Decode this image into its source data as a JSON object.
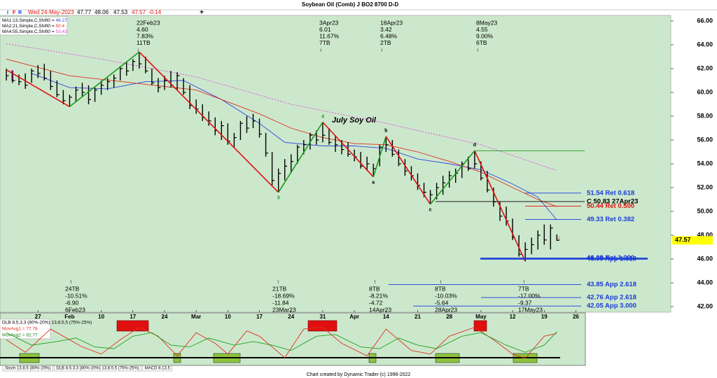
{
  "header": {
    "title": "Soybean Oil (Comb) J BO2 8700 D-D",
    "footer": "Chart created by Dynamic Trader  (c) 1996-2022",
    "toolbar_icons": [
      "I",
      "F",
      "R"
    ],
    "plus": "+"
  },
  "quote": {
    "date": "Wed 24-May-2023",
    "open": 47.77,
    "high": 48.06,
    "low": 47.53,
    "close": 47.57,
    "change": -0.14
  },
  "chart_data": {
    "type": "ohlc",
    "title": "July Soy Oil",
    "color": "#000000",
    "xlim": [
      -1,
      105
    ],
    "xticks": [
      {
        "value": 5,
        "label": "27"
      },
      {
        "value": 10,
        "label": "Feb"
      },
      {
        "value": 15,
        "label": "10"
      },
      {
        "value": 20,
        "label": "17"
      },
      {
        "value": 25,
        "label": "24"
      },
      {
        "value": 30,
        "label": "Mar"
      },
      {
        "value": 35,
        "label": "10"
      },
      {
        "value": 40,
        "label": "17"
      },
      {
        "value": 45,
        "label": "24"
      },
      {
        "value": 50,
        "label": "31"
      },
      {
        "value": 55,
        "label": "Apr"
      },
      {
        "value": 60,
        "label": "14"
      },
      {
        "value": 65,
        "label": "21"
      },
      {
        "value": 70,
        "label": "28"
      },
      {
        "value": 75,
        "label": "May"
      },
      {
        "value": 80,
        "label": "12"
      },
      {
        "value": 85,
        "label": "19"
      },
      {
        "value": 90,
        "label": "26"
      }
    ],
    "ylim": [
      41.53,
      66.47
    ],
    "yticks": [
      {
        "value": 42,
        "label": "42.00"
      },
      {
        "value": 44,
        "label": "44.00"
      },
      {
        "value": 46,
        "label": "46.00"
      },
      {
        "value": 48,
        "label": "48.00"
      },
      {
        "value": 50,
        "label": "50.00"
      },
      {
        "value": 52,
        "label": "52.00"
      },
      {
        "value": 54,
        "label": "54.00"
      },
      {
        "value": 56,
        "label": "56.00"
      },
      {
        "value": 58,
        "label": "58.00"
      },
      {
        "value": 60,
        "label": "60.00"
      },
      {
        "value": 62,
        "label": "62.00"
      },
      {
        "value": 64,
        "label": "64.00"
      },
      {
        "value": 66,
        "label": "66.00"
      }
    ],
    "high": [
      62.0,
      61.8,
      61.5,
      61.6,
      62.0,
      62.3,
      62.4,
      61.8,
      61.0,
      60.2,
      59.8,
      60.5,
      60.8,
      60.6,
      60.4,
      61.0,
      61.2,
      61.5,
      62.2,
      62.6,
      62.8,
      63.4,
      63.0,
      62.0,
      61.2,
      61.4,
      61.8,
      61.7,
      61.2,
      60.6,
      59.4,
      59.0,
      58.4,
      57.9,
      57.6,
      57.4,
      56.6,
      57.6,
      58.0,
      58.2,
      57.8,
      56.6,
      55.0,
      53.6,
      54.4,
      54.8,
      55.6,
      56.0,
      56.6,
      56.8,
      57.5,
      57.0,
      56.4,
      56.0,
      55.8,
      55.2,
      55.0,
      54.6,
      54.0,
      55.6,
      56.3,
      56.0,
      55.2,
      54.4,
      53.8,
      53.2,
      52.4,
      51.8,
      52.4,
      53.0,
      53.4,
      53.6,
      54.2,
      54.6,
      55.1,
      54.2,
      53.4,
      52.0,
      50.8,
      50.4,
      49.4,
      48.0,
      47.4,
      47.8,
      48.4,
      48.9,
      48.9,
      48.06
    ],
    "low": [
      61.0,
      60.8,
      60.6,
      60.3,
      60.8,
      61.2,
      61.0,
      60.2,
      59.6,
      59.0,
      58.8,
      59.2,
      59.6,
      59.0,
      59.2,
      59.8,
      60.2,
      60.4,
      61.0,
      61.4,
      61.8,
      62.0,
      61.6,
      60.6,
      60.0,
      60.2,
      60.4,
      60.2,
      59.8,
      58.6,
      58.2,
      57.6,
      57.2,
      56.4,
      56.0,
      55.6,
      55.4,
      56.0,
      56.6,
      57.0,
      56.2,
      54.6,
      52.2,
      51.6,
      52.6,
      53.2,
      54.0,
      54.8,
      55.2,
      55.6,
      55.8,
      55.6,
      55.0,
      54.8,
      54.6,
      54.2,
      53.6,
      53.4,
      52.9,
      53.8,
      55.0,
      54.6,
      53.8,
      53.0,
      52.6,
      51.8,
      51.2,
      50.6,
      51.0,
      51.4,
      52.0,
      52.4,
      52.8,
      53.4,
      53.6,
      52.6,
      51.6,
      50.4,
      49.2,
      48.8,
      47.6,
      46.2,
      45.8,
      46.4,
      46.8,
      47.2,
      46.8,
      47.53
    ],
    "close": [
      61.4,
      61.0,
      60.9,
      60.6,
      61.8,
      61.6,
      61.2,
      60.5,
      59.8,
      59.3,
      59.6,
      60.2,
      60.0,
      59.4,
      60.2,
      60.6,
      60.9,
      61.2,
      62.0,
      61.8,
      62.6,
      62.4,
      61.8,
      60.8,
      60.4,
      61.0,
      60.6,
      61.4,
      60.0,
      58.9,
      58.6,
      57.9,
      57.6,
      56.8,
      57.2,
      55.9,
      56.2,
      57.4,
      57.0,
      57.6,
      56.5,
      54.9,
      52.6,
      53.2,
      53.8,
      54.2,
      55.4,
      55.6,
      56.4,
      56.0,
      56.4,
      55.8,
      55.6,
      55.2,
      54.8,
      54.6,
      53.8,
      54.0,
      53.6,
      55.4,
      55.6,
      54.8,
      54.0,
      53.4,
      53.0,
      52.2,
      51.6,
      51.4,
      52.0,
      52.4,
      53.0,
      53.2,
      54.0,
      53.6,
      54.0,
      52.8,
      51.8,
      50.8,
      49.6,
      49.2,
      47.8,
      46.4,
      46.8,
      47.2,
      48.0,
      47.6,
      48.6,
      47.57
    ],
    "moving_averages": [
      {
        "name": "MA1:13,Simple,C,Shift0",
        "value": 49.27,
        "color": "#3048e0",
        "dashed": false,
        "x": [
          4,
          10,
          16,
          22,
          28,
          34,
          40,
          44,
          50,
          55,
          60,
          65,
          70,
          75,
          80,
          84,
          87
        ],
        "values": [
          61.6,
          60.4,
          60.3,
          60.9,
          61.0,
          59.4,
          57.4,
          55.8,
          55.5,
          55.5,
          55.3,
          54.4,
          54.0,
          53.5,
          52.3,
          51.2,
          49.27
        ]
      },
      {
        "name": "MA2:21,Simple,C,Shift0",
        "value": 50.4,
        "color": "#e03020",
        "dashed": false,
        "x": [
          0,
          10,
          20,
          30,
          40,
          45,
          50,
          55,
          60,
          65,
          70,
          75,
          80,
          84,
          87
        ],
        "values": [
          62.8,
          61.4,
          60.8,
          60.2,
          58.2,
          57.0,
          56.2,
          55.7,
          55.6,
          55.0,
          54.2,
          53.3,
          52.0,
          51.0,
          50.4
        ]
      },
      {
        "name": "MA4:55,Simple,C,Shift0",
        "value": 53.43,
        "color": "#e040e0",
        "dashed": true,
        "x": [
          0,
          15,
          30,
          45,
          60,
          75,
          87
        ],
        "values": [
          64.1,
          62.8,
          61.3,
          59.0,
          57.4,
          55.6,
          53.43
        ]
      }
    ],
    "zigzag": {
      "up_color": "#1a9a1a",
      "down_color": "#e01010",
      "x": [
        0,
        10,
        21,
        43,
        50,
        58,
        60,
        67,
        74,
        82
      ],
      "values": [
        61.9,
        58.8,
        63.4,
        51.6,
        57.5,
        52.9,
        56.3,
        50.6,
        55.1,
        45.8
      ],
      "labels": [
        null,
        null,
        null,
        "3",
        "4",
        "a",
        "b",
        "c",
        "d",
        null
      ],
      "label_colors": [
        null,
        null,
        null,
        "#1a9a1a",
        "#1a9a1a",
        "#000000",
        "#000000",
        "#000000",
        "#000000",
        null
      ]
    },
    "levels": [
      {
        "value": 51.54,
        "label": "51.54 Ret 0.618",
        "color": "#1a3ad8"
      },
      {
        "value": 50.83,
        "label": "C 50.83 27Apr23",
        "color": "#000000"
      },
      {
        "value": 50.44,
        "label": "50.44 Ret 0.500",
        "color": "#e01010"
      },
      {
        "value": 49.33,
        "label": "49.33 Ret 0.382",
        "color": "#1a3ad8"
      },
      {
        "value": 46.09,
        "label": "46.09 Ret 1.000",
        "color": "#1a3ad8"
      },
      {
        "value": 46.0,
        "label": "46.00 App 1.618",
        "color": "#1a3ad8"
      },
      {
        "value": 43.85,
        "label": "43.85 App 2.618",
        "color": "#1a3ad8"
      },
      {
        "value": 42.76,
        "label": "42.76 App 2.618",
        "color": "#1a3ad8"
      },
      {
        "value": 42.05,
        "label": "42.05 App 3.000",
        "color": "#1a3ad8"
      }
    ],
    "pivot_notes_top": [
      [
        "22Feb23",
        "4.60",
        "7.83%",
        "11TB",
        "↓"
      ],
      [
        "3Apr23",
        "6.01",
        "11.67%",
        "7TB",
        "↓"
      ],
      [
        "18Apr23",
        "3.42",
        "6.48%",
        "2TB",
        "↓"
      ],
      [
        "8May23",
        "4.55",
        "9.00%",
        "6TB",
        "↓"
      ]
    ],
    "pivot_notes_bottom": [
      [
        "↑",
        "24TB",
        "-10.51%",
        "-6.90",
        "6Feb23"
      ],
      [
        "↑",
        "21TB",
        "-18.69%",
        "-11.84",
        "23Mar23"
      ],
      [
        "↑",
        "8TB",
        "-8.21%",
        "-4.72",
        "14Apr23"
      ],
      [
        "↑",
        "8TB",
        "-10.03%",
        "-5.64",
        "28Apr23"
      ],
      [
        "↑",
        "7TB",
        "-17.00%",
        "-9.37",
        "17May23"
      ]
    ]
  },
  "oscillator": {
    "ylim": [
      0,
      100
    ],
    "legend": [
      "DLB 8,5,3,3 (80%-20%) 13,8,5,5 (75%-25%)",
      "MovAvg1 = 77.78",
      "MovAvg2 = 82.77"
    ],
    "series": [
      {
        "color": "#e03020",
        "x": [
          0,
          3,
          7,
          9,
          12,
          15,
          18,
          21,
          24,
          27,
          30,
          33,
          35,
          38,
          40,
          44,
          47,
          50,
          53,
          57,
          60,
          62,
          64,
          67,
          70,
          74,
          77,
          80,
          82,
          85,
          87
        ],
        "values": [
          60,
          25,
          90,
          70,
          40,
          20,
          60,
          95,
          70,
          15,
          80,
          50,
          20,
          85,
          70,
          10,
          90,
          95,
          50,
          15,
          90,
          60,
          30,
          20,
          70,
          95,
          60,
          20,
          8,
          70,
          77.78
        ]
      },
      {
        "color": "#20a020",
        "x": [
          0,
          4,
          8,
          11,
          14,
          17,
          20,
          23,
          26,
          29,
          32,
          36,
          39,
          42,
          45,
          49,
          52,
          56,
          59,
          62,
          65,
          68,
          72,
          75,
          79,
          82,
          85,
          87
        ],
        "values": [
          80,
          45,
          55,
          65,
          40,
          35,
          70,
          80,
          45,
          40,
          65,
          45,
          55,
          45,
          30,
          70,
          75,
          40,
          35,
          65,
          45,
          35,
          70,
          80,
          45,
          25,
          45,
          82.77
        ]
      }
    ],
    "tabs": [
      "Stoch 13.8.5 (80%-20%)",
      "DLB 8.5.3.3 (80%-20%) 13.8.5.5 (75%-25%)",
      "MACD 8.13.5"
    ]
  }
}
